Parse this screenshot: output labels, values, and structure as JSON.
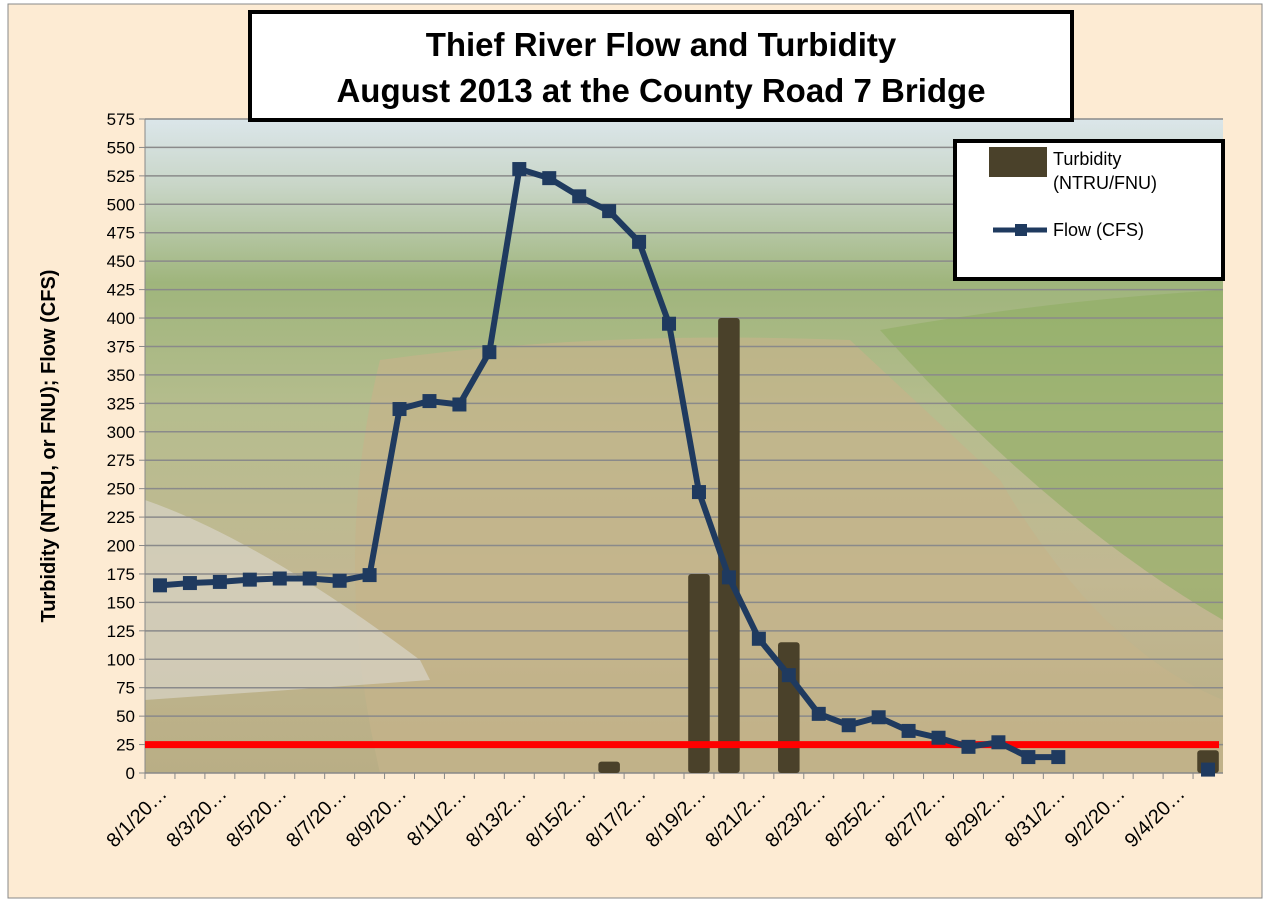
{
  "chart_data": {
    "type": "bar-line",
    "title": [
      "Thief River Flow and Turbidity",
      "August 2013 at the County Road 7 Bridge"
    ],
    "y_label": "Turbidity (NTRU, or FNU); Flow (CFS)",
    "categories": [
      "8/1/20…",
      null,
      "8/3/20…",
      null,
      "8/5/20…",
      null,
      "8/7/20…",
      null,
      "8/9/20…",
      null,
      "8/11/2…",
      null,
      "8/13/2…",
      null,
      "8/15/2…",
      null,
      "8/17/2…",
      null,
      "8/19/2…",
      null,
      "8/21/2…",
      null,
      "8/23/2…",
      null,
      "8/25/2…",
      null,
      "8/27/2…",
      null,
      "8/29/2…",
      null,
      "8/31/2…",
      null,
      "9/2/20…",
      null,
      "9/4/20…",
      null
    ],
    "series": [
      {
        "name": "Turbidity (NTRU/FNU)",
        "kind": "bar",
        "color": "#4a412a",
        "values": [
          null,
          null,
          null,
          null,
          null,
          null,
          null,
          null,
          null,
          null,
          null,
          null,
          null,
          null,
          null,
          10,
          null,
          null,
          175,
          400,
          null,
          115,
          null,
          null,
          null,
          null,
          null,
          null,
          null,
          null,
          null,
          null,
          null,
          null,
          null,
          20
        ]
      },
      {
        "name": "Flow (CFS)",
        "kind": "line",
        "color": "#1f3a5f",
        "values": [
          165,
          167,
          168,
          170,
          171,
          171,
          169,
          174,
          320,
          327,
          324,
          370,
          531,
          523,
          507,
          494,
          467,
          395,
          247,
          172,
          118,
          86,
          52,
          42,
          49,
          37,
          31,
          23,
          27,
          14,
          14,
          null,
          null,
          null,
          null,
          3
        ]
      }
    ],
    "reference_line": {
      "value": 25,
      "color": "#ff0000"
    },
    "ylim": [
      0,
      575
    ],
    "yticks": [
      0,
      25,
      50,
      75,
      100,
      125,
      150,
      175,
      200,
      225,
      250,
      275,
      300,
      325,
      350,
      375,
      400,
      425,
      450,
      475,
      500,
      525,
      550,
      575
    ],
    "grid": true
  }
}
